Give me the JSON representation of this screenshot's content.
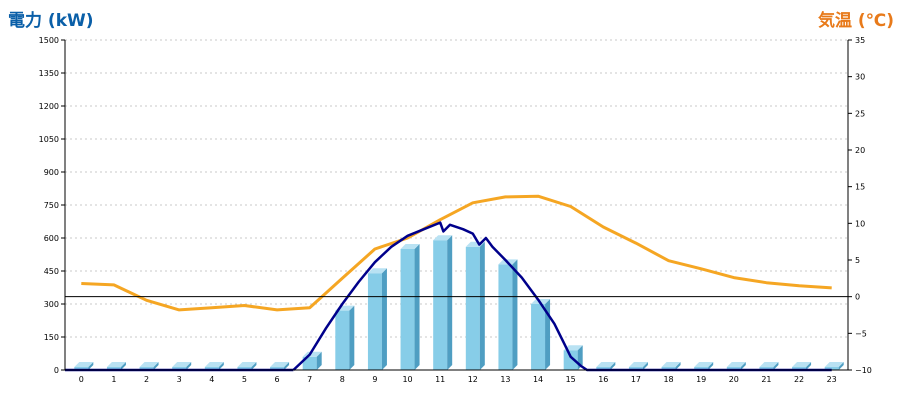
{
  "chart_data": {
    "type": "bar",
    "title_left": "電力 (kW)",
    "title_right": "気温 (℃)",
    "colors": {
      "left_title": "#0a5fa8",
      "right_title": "#e87a1a",
      "bar": "#87cde8",
      "bar_side": "#4f9ec2",
      "bar_top": "#b9e2f3",
      "power_line": "#00008b",
      "temp_line": "#f5a623",
      "grid": "#c8c8c8",
      "zero_line": "#000000"
    },
    "x_categories": [
      "0",
      "1",
      "2",
      "3",
      "4",
      "5",
      "6",
      "7",
      "8",
      "9",
      "10",
      "11",
      "12",
      "13",
      "14",
      "15",
      "16",
      "17",
      "18",
      "19",
      "20",
      "21",
      "22",
      "23"
    ],
    "left_axis": {
      "min": 0,
      "max": 1500,
      "ticks": [
        "0",
        "150",
        "300",
        "450",
        "600",
        "750",
        "900",
        "1050",
        "1200",
        "1350",
        "1500"
      ]
    },
    "right_axis": {
      "min": -10,
      "max": 35,
      "ticks": [
        "−10",
        "−5",
        "0",
        "5",
        "10",
        "15",
        "20",
        "25",
        "30",
        "35"
      ],
      "tick_values": [
        -10,
        -5,
        0,
        5,
        10,
        15,
        20,
        25,
        30,
        35
      ]
    },
    "grid": true,
    "series": [
      {
        "type": "bar",
        "axis": "left",
        "values": [
          0,
          0,
          0,
          0,
          0,
          0,
          0,
          60,
          270,
          440,
          550,
          590,
          560,
          480,
          300,
          90,
          0,
          0,
          0,
          0,
          0,
          0,
          0,
          0
        ]
      },
      {
        "type": "line",
        "axis": "left",
        "x": [
          6.5,
          7.0,
          7.5,
          8.0,
          8.5,
          9.0,
          9.5,
          10.0,
          10.5,
          11.0,
          11.1,
          11.3,
          11.7,
          12.0,
          12.2,
          12.4,
          12.6,
          13.0,
          13.5,
          14.0,
          14.5,
          14.8,
          15.0,
          15.3,
          15.5,
          16.0,
          17.0,
          18.0,
          19.0,
          20.0,
          21.0,
          22.0,
          23.0
        ],
        "values": [
          0,
          70,
          190,
          300,
          400,
          490,
          560,
          610,
          640,
          670,
          630,
          660,
          640,
          620,
          570,
          600,
          560,
          500,
          420,
          320,
          210,
          120,
          60,
          20,
          0,
          0,
          0,
          0,
          0,
          0,
          0,
          0,
          0
        ]
      },
      {
        "type": "line",
        "axis": "right",
        "x": [
          0,
          1,
          2,
          3,
          4,
          5,
          6,
          7,
          8,
          9,
          10,
          11,
          12,
          13,
          14,
          15,
          16,
          17,
          18,
          19,
          20,
          21,
          22,
          23
        ],
        "values": [
          1.8,
          1.6,
          -0.5,
          -1.8,
          -1.5,
          -1.2,
          -1.8,
          -1.5,
          2.5,
          6.5,
          8.0,
          10.5,
          12.8,
          13.6,
          13.7,
          12.3,
          9.5,
          7.3,
          4.9,
          3.8,
          2.6,
          1.9,
          1.5,
          1.2
        ]
      }
    ]
  }
}
